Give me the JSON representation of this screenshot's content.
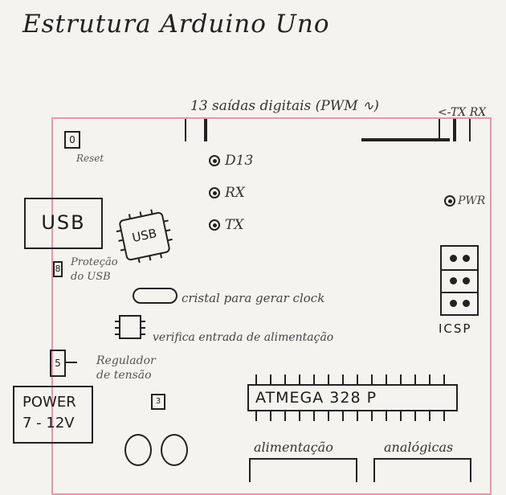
{
  "title": "Estrutura Arduino Uno",
  "labels": {
    "digital_pins": "13 saídas digitais (PWM ∿)",
    "tx_rx": "<-TX RX",
    "reset": "Reset",
    "reset_button": "0",
    "usb_port": "USB",
    "usb_chip": "USB",
    "usb_protection": "Proteção do USB",
    "usb_protection_mark": "8",
    "crystal": "cristal para gerar clock",
    "power_checker": "verifica entrada de alimentação",
    "regulator": "Regulador de tensão",
    "regulator_mark": "5",
    "regulator2_mark": "3",
    "power_jack": "POWER",
    "power_jack_range": "7 - 12V",
    "atmega": "ATMEGA 328 P",
    "icsp": "ICSP",
    "pwr_led": "PWR",
    "power_header": "alimentação",
    "analog_header": "analógicas"
  },
  "leds": [
    {
      "label": "D13"
    },
    {
      "label": "RX"
    },
    {
      "label": "TX"
    }
  ],
  "colors": {
    "board_outline": "#e29aa5",
    "ink": "#1b1b1b"
  }
}
